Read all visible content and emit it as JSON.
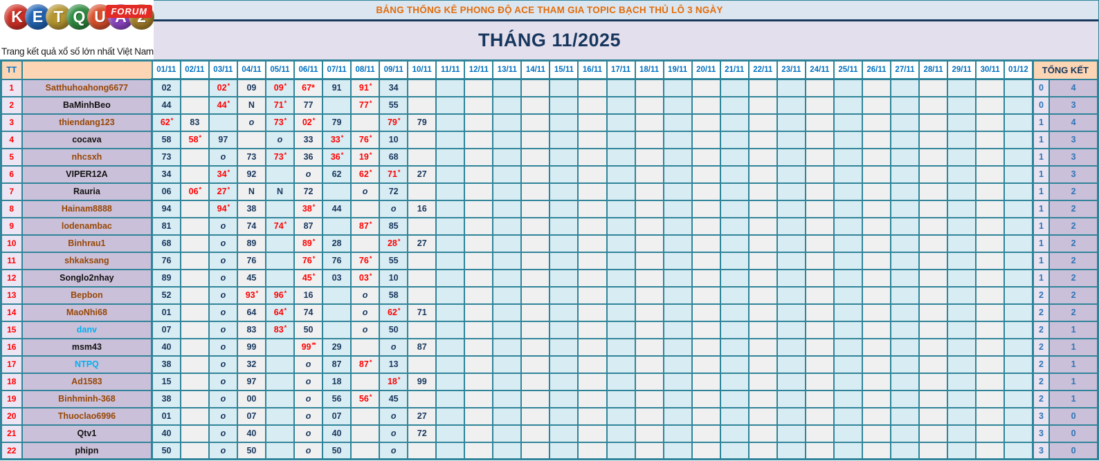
{
  "logo": {
    "letters": [
      {
        "ch": "K",
        "color": "#cf2e24"
      },
      {
        "ch": "E",
        "color": "#2063b4"
      },
      {
        "ch": "T",
        "color": "#b5952f"
      },
      {
        "ch": "Q",
        "color": "#2c8a3e"
      },
      {
        "ch": "U",
        "color": "#d94f2b"
      },
      {
        "ch": "A",
        "color": "#8f46c6"
      },
      {
        "ch": "2",
        "color": "#a5802b"
      }
    ],
    "forum_label": "FORUM",
    "tagline": "Trang kết quả xổ số lớn nhất Việt Nam"
  },
  "banner": {
    "title": "BẢNG THỐNG KÊ PHONG ĐỘ ACE THAM GIA TOPIC BẠCH THỦ LÔ 3 NGÀY",
    "month_title": "THÁNG 11/2025"
  },
  "colors": {
    "accent_orange": "#e36c09",
    "navy": "#17365d",
    "red": "#ff0000",
    "teal_border": "#2f8499",
    "header_peach": "#fcd5b4",
    "col_blue": "#d8ecf3",
    "col_gray": "#f0f0f0",
    "name_bg": "#cbc0d9",
    "sum1_bg": "#e8e2f1",
    "sum_value_blue": "#2d74b5",
    "brown_name": "#974706",
    "cyan_name": "#00b0f0"
  },
  "table": {
    "tt_header": "TT",
    "summary_header": "TỔNG KẾT",
    "date_columns": [
      "01/11",
      "02/11",
      "03/11",
      "04/11",
      "05/11",
      "06/11",
      "07/11",
      "08/11",
      "09/11",
      "10/11",
      "11/11",
      "12/11",
      "13/11",
      "14/11",
      "15/11",
      "16/11",
      "17/11",
      "18/11",
      "19/11",
      "20/11",
      "21/11",
      "22/11",
      "23/11",
      "24/11",
      "25/11",
      "26/11",
      "27/11",
      "28/11",
      "29/11",
      "30/11",
      "01/12"
    ],
    "rows": [
      {
        "tt": "1",
        "name": "Satthuhoahong6677",
        "nc": "brown",
        "s1": "0",
        "s2": "4",
        "cells": [
          {
            "d": 0,
            "v": "02"
          },
          {
            "d": 2,
            "v": "02",
            "f": "r*"
          },
          {
            "d": 3,
            "v": "09"
          },
          {
            "d": 4,
            "v": "09",
            "f": "r*"
          },
          {
            "d": 5,
            "v": "67*",
            "f": "r"
          },
          {
            "d": 6,
            "v": "91"
          },
          {
            "d": 7,
            "v": "91",
            "f": "r*"
          },
          {
            "d": 8,
            "v": "34"
          }
        ]
      },
      {
        "tt": "2",
        "name": "BaMinhBeo",
        "nc": "black",
        "s1": "0",
        "s2": "3",
        "cells": [
          {
            "d": 0,
            "v": "44"
          },
          {
            "d": 2,
            "v": "44",
            "f": "r*"
          },
          {
            "d": 3,
            "v": "N"
          },
          {
            "d": 4,
            "v": "71",
            "f": "r*"
          },
          {
            "d": 5,
            "v": "77"
          },
          {
            "d": 7,
            "v": "77",
            "f": "r*"
          },
          {
            "d": 8,
            "v": "55"
          }
        ]
      },
      {
        "tt": "3",
        "name": "thiendang123",
        "nc": "brown",
        "s1": "1",
        "s2": "4",
        "cells": [
          {
            "d": 0,
            "v": "62",
            "f": "r*"
          },
          {
            "d": 1,
            "v": "83"
          },
          {
            "d": 3,
            "v": "o",
            "f": "i"
          },
          {
            "d": 4,
            "v": "73",
            "f": "r*"
          },
          {
            "d": 5,
            "v": "02",
            "f": "r*"
          },
          {
            "d": 6,
            "v": "79"
          },
          {
            "d": 8,
            "v": "79",
            "f": "r*"
          },
          {
            "d": 9,
            "v": "79"
          }
        ]
      },
      {
        "tt": "4",
        "name": "cocava",
        "nc": "black",
        "s1": "1",
        "s2": "3",
        "cells": [
          {
            "d": 0,
            "v": "58"
          },
          {
            "d": 1,
            "v": "58",
            "f": "r*"
          },
          {
            "d": 2,
            "v": "97"
          },
          {
            "d": 4,
            "v": "o",
            "f": "i"
          },
          {
            "d": 5,
            "v": "33"
          },
          {
            "d": 6,
            "v": "33",
            "f": "r*"
          },
          {
            "d": 7,
            "v": "76",
            "f": "r*"
          },
          {
            "d": 8,
            "v": "10"
          }
        ]
      },
      {
        "tt": "5",
        "name": "nhcsxh",
        "nc": "brown",
        "s1": "1",
        "s2": "3",
        "cells": [
          {
            "d": 0,
            "v": "73"
          },
          {
            "d": 2,
            "v": "o",
            "f": "i"
          },
          {
            "d": 3,
            "v": "73"
          },
          {
            "d": 4,
            "v": "73",
            "f": "r*"
          },
          {
            "d": 5,
            "v": "36"
          },
          {
            "d": 6,
            "v": "36",
            "f": "r*"
          },
          {
            "d": 7,
            "v": "19",
            "f": "r*"
          },
          {
            "d": 8,
            "v": "68"
          }
        ]
      },
      {
        "tt": "6",
        "name": "VIPER12A",
        "nc": "black",
        "s1": "1",
        "s2": "3",
        "cells": [
          {
            "d": 0,
            "v": "34"
          },
          {
            "d": 2,
            "v": "34",
            "f": "r*"
          },
          {
            "d": 3,
            "v": "92"
          },
          {
            "d": 5,
            "v": "o",
            "f": "i"
          },
          {
            "d": 6,
            "v": "62"
          },
          {
            "d": 7,
            "v": "62",
            "f": "r*"
          },
          {
            "d": 8,
            "v": "71",
            "f": "r*"
          },
          {
            "d": 9,
            "v": "27"
          }
        ]
      },
      {
        "tt": "7",
        "name": "Rauria",
        "nc": "black",
        "s1": "1",
        "s2": "2",
        "cells": [
          {
            "d": 0,
            "v": "06"
          },
          {
            "d": 1,
            "v": "06",
            "f": "r*"
          },
          {
            "d": 2,
            "v": "27",
            "f": "r*"
          },
          {
            "d": 3,
            "v": "N"
          },
          {
            "d": 4,
            "v": "N"
          },
          {
            "d": 5,
            "v": "72"
          },
          {
            "d": 7,
            "v": "o",
            "f": "i"
          },
          {
            "d": 8,
            "v": "72"
          }
        ]
      },
      {
        "tt": "8",
        "name": "Hainam8888",
        "nc": "brown",
        "s1": "1",
        "s2": "2",
        "cells": [
          {
            "d": 0,
            "v": "94"
          },
          {
            "d": 2,
            "v": "94",
            "f": "r*"
          },
          {
            "d": 3,
            "v": "38"
          },
          {
            "d": 5,
            "v": "38",
            "f": "r*"
          },
          {
            "d": 6,
            "v": "44"
          },
          {
            "d": 8,
            "v": "o",
            "f": "i"
          },
          {
            "d": 9,
            "v": "16"
          }
        ]
      },
      {
        "tt": "9",
        "name": "lodenambac",
        "nc": "brown",
        "s1": "1",
        "s2": "2",
        "cells": [
          {
            "d": 0,
            "v": "81"
          },
          {
            "d": 2,
            "v": "o",
            "f": "i"
          },
          {
            "d": 3,
            "v": "74"
          },
          {
            "d": 4,
            "v": "74",
            "f": "r*"
          },
          {
            "d": 5,
            "v": "87"
          },
          {
            "d": 7,
            "v": "87",
            "f": "r*"
          },
          {
            "d": 8,
            "v": "85"
          }
        ]
      },
      {
        "tt": "10",
        "name": "Binhrau1",
        "nc": "brown",
        "s1": "1",
        "s2": "2",
        "cells": [
          {
            "d": 0,
            "v": "68"
          },
          {
            "d": 2,
            "v": "o",
            "f": "i"
          },
          {
            "d": 3,
            "v": "89"
          },
          {
            "d": 5,
            "v": "89",
            "f": "r*"
          },
          {
            "d": 6,
            "v": "28"
          },
          {
            "d": 8,
            "v": "28",
            "f": "r*"
          },
          {
            "d": 9,
            "v": "27"
          }
        ]
      },
      {
        "tt": "11",
        "name": "shkaksang",
        "nc": "brown",
        "s1": "1",
        "s2": "2",
        "cells": [
          {
            "d": 0,
            "v": "76"
          },
          {
            "d": 2,
            "v": "o",
            "f": "i"
          },
          {
            "d": 3,
            "v": "76"
          },
          {
            "d": 5,
            "v": "76",
            "f": "r*"
          },
          {
            "d": 6,
            "v": "76"
          },
          {
            "d": 7,
            "v": "76",
            "f": "r*"
          },
          {
            "d": 8,
            "v": "55"
          }
        ]
      },
      {
        "tt": "12",
        "name": "Songlo2nhay",
        "nc": "black",
        "s1": "1",
        "s2": "2",
        "cells": [
          {
            "d": 0,
            "v": "89"
          },
          {
            "d": 2,
            "v": "o",
            "f": "i"
          },
          {
            "d": 3,
            "v": "45"
          },
          {
            "d": 5,
            "v": "45",
            "f": "r*"
          },
          {
            "d": 6,
            "v": "03"
          },
          {
            "d": 7,
            "v": "03",
            "f": "r*"
          },
          {
            "d": 8,
            "v": "10"
          }
        ]
      },
      {
        "tt": "13",
        "name": "Bepbon",
        "nc": "brown",
        "s1": "2",
        "s2": "2",
        "cells": [
          {
            "d": 0,
            "v": "52"
          },
          {
            "d": 2,
            "v": "o",
            "f": "i"
          },
          {
            "d": 3,
            "v": "93",
            "f": "r*"
          },
          {
            "d": 4,
            "v": "96",
            "f": "r*"
          },
          {
            "d": 5,
            "v": "16"
          },
          {
            "d": 7,
            "v": "o",
            "f": "i"
          },
          {
            "d": 8,
            "v": "58"
          }
        ]
      },
      {
        "tt": "14",
        "name": "MaoNhi68",
        "nc": "brown",
        "s1": "2",
        "s2": "2",
        "cells": [
          {
            "d": 0,
            "v": "01"
          },
          {
            "d": 2,
            "v": "o",
            "f": "i"
          },
          {
            "d": 3,
            "v": "64"
          },
          {
            "d": 4,
            "v": "64",
            "f": "r*"
          },
          {
            "d": 5,
            "v": "74"
          },
          {
            "d": 7,
            "v": "o",
            "f": "i"
          },
          {
            "d": 8,
            "v": "62",
            "f": "r*"
          },
          {
            "d": 9,
            "v": "71"
          }
        ]
      },
      {
        "tt": "15",
        "name": "danv",
        "nc": "cyan",
        "s1": "2",
        "s2": "1",
        "cells": [
          {
            "d": 0,
            "v": "07"
          },
          {
            "d": 2,
            "v": "o",
            "f": "i"
          },
          {
            "d": 3,
            "v": "83"
          },
          {
            "d": 4,
            "v": "83",
            "f": "r*"
          },
          {
            "d": 5,
            "v": "50"
          },
          {
            "d": 7,
            "v": "o",
            "f": "i"
          },
          {
            "d": 8,
            "v": "50"
          }
        ]
      },
      {
        "tt": "16",
        "name": "msm43",
        "nc": "black",
        "s1": "2",
        "s2": "1",
        "cells": [
          {
            "d": 0,
            "v": "40"
          },
          {
            "d": 2,
            "v": "o",
            "f": "i"
          },
          {
            "d": 3,
            "v": "99"
          },
          {
            "d": 5,
            "v": "99",
            "f": "r**"
          },
          {
            "d": 6,
            "v": "29"
          },
          {
            "d": 8,
            "v": "o",
            "f": "i"
          },
          {
            "d": 9,
            "v": "87"
          }
        ]
      },
      {
        "tt": "17",
        "name": "NTPQ",
        "nc": "cyan",
        "s1": "2",
        "s2": "1",
        "cells": [
          {
            "d": 0,
            "v": "38"
          },
          {
            "d": 2,
            "v": "o",
            "f": "i"
          },
          {
            "d": 3,
            "v": "32"
          },
          {
            "d": 5,
            "v": "o",
            "f": "i"
          },
          {
            "d": 6,
            "v": "87"
          },
          {
            "d": 7,
            "v": "87",
            "f": "r*"
          },
          {
            "d": 8,
            "v": "13"
          }
        ]
      },
      {
        "tt": "18",
        "name": "Ad1583",
        "nc": "brown",
        "s1": "2",
        "s2": "1",
        "cells": [
          {
            "d": 0,
            "v": "15"
          },
          {
            "d": 2,
            "v": "o",
            "f": "i"
          },
          {
            "d": 3,
            "v": "97"
          },
          {
            "d": 5,
            "v": "o",
            "f": "i"
          },
          {
            "d": 6,
            "v": "18"
          },
          {
            "d": 8,
            "v": "18",
            "f": "r*"
          },
          {
            "d": 9,
            "v": "99"
          }
        ]
      },
      {
        "tt": "19",
        "name": "Binhminh-368",
        "nc": "brown",
        "s1": "2",
        "s2": "1",
        "cells": [
          {
            "d": 0,
            "v": "38"
          },
          {
            "d": 2,
            "v": "o",
            "f": "i"
          },
          {
            "d": 3,
            "v": "00"
          },
          {
            "d": 5,
            "v": "o",
            "f": "i"
          },
          {
            "d": 6,
            "v": "56"
          },
          {
            "d": 7,
            "v": "56",
            "f": "r*"
          },
          {
            "d": 8,
            "v": "45"
          }
        ]
      },
      {
        "tt": "20",
        "name": "Thuoclao6996",
        "nc": "brown",
        "s1": "3",
        "s2": "0",
        "cells": [
          {
            "d": 0,
            "v": "01"
          },
          {
            "d": 2,
            "v": "o",
            "f": "i"
          },
          {
            "d": 3,
            "v": "07"
          },
          {
            "d": 5,
            "v": "o",
            "f": "i"
          },
          {
            "d": 6,
            "v": "07"
          },
          {
            "d": 8,
            "v": "o",
            "f": "i"
          },
          {
            "d": 9,
            "v": "27"
          }
        ]
      },
      {
        "tt": "21",
        "name": "Qtv1",
        "nc": "black",
        "s1": "3",
        "s2": "0",
        "cells": [
          {
            "d": 0,
            "v": "40"
          },
          {
            "d": 2,
            "v": "o",
            "f": "i"
          },
          {
            "d": 3,
            "v": "40"
          },
          {
            "d": 5,
            "v": "o",
            "f": "i"
          },
          {
            "d": 6,
            "v": "40"
          },
          {
            "d": 8,
            "v": "o",
            "f": "i"
          },
          {
            "d": 9,
            "v": "72"
          }
        ]
      },
      {
        "tt": "22",
        "name": "phipn",
        "nc": "black",
        "s1": "3",
        "s2": "0",
        "cells": [
          {
            "d": 0,
            "v": "50"
          },
          {
            "d": 2,
            "v": "o",
            "f": "i"
          },
          {
            "d": 3,
            "v": "50"
          },
          {
            "d": 5,
            "v": "o",
            "f": "i"
          },
          {
            "d": 6,
            "v": "50"
          },
          {
            "d": 8,
            "v": "o",
            "f": "i"
          }
        ]
      }
    ]
  }
}
